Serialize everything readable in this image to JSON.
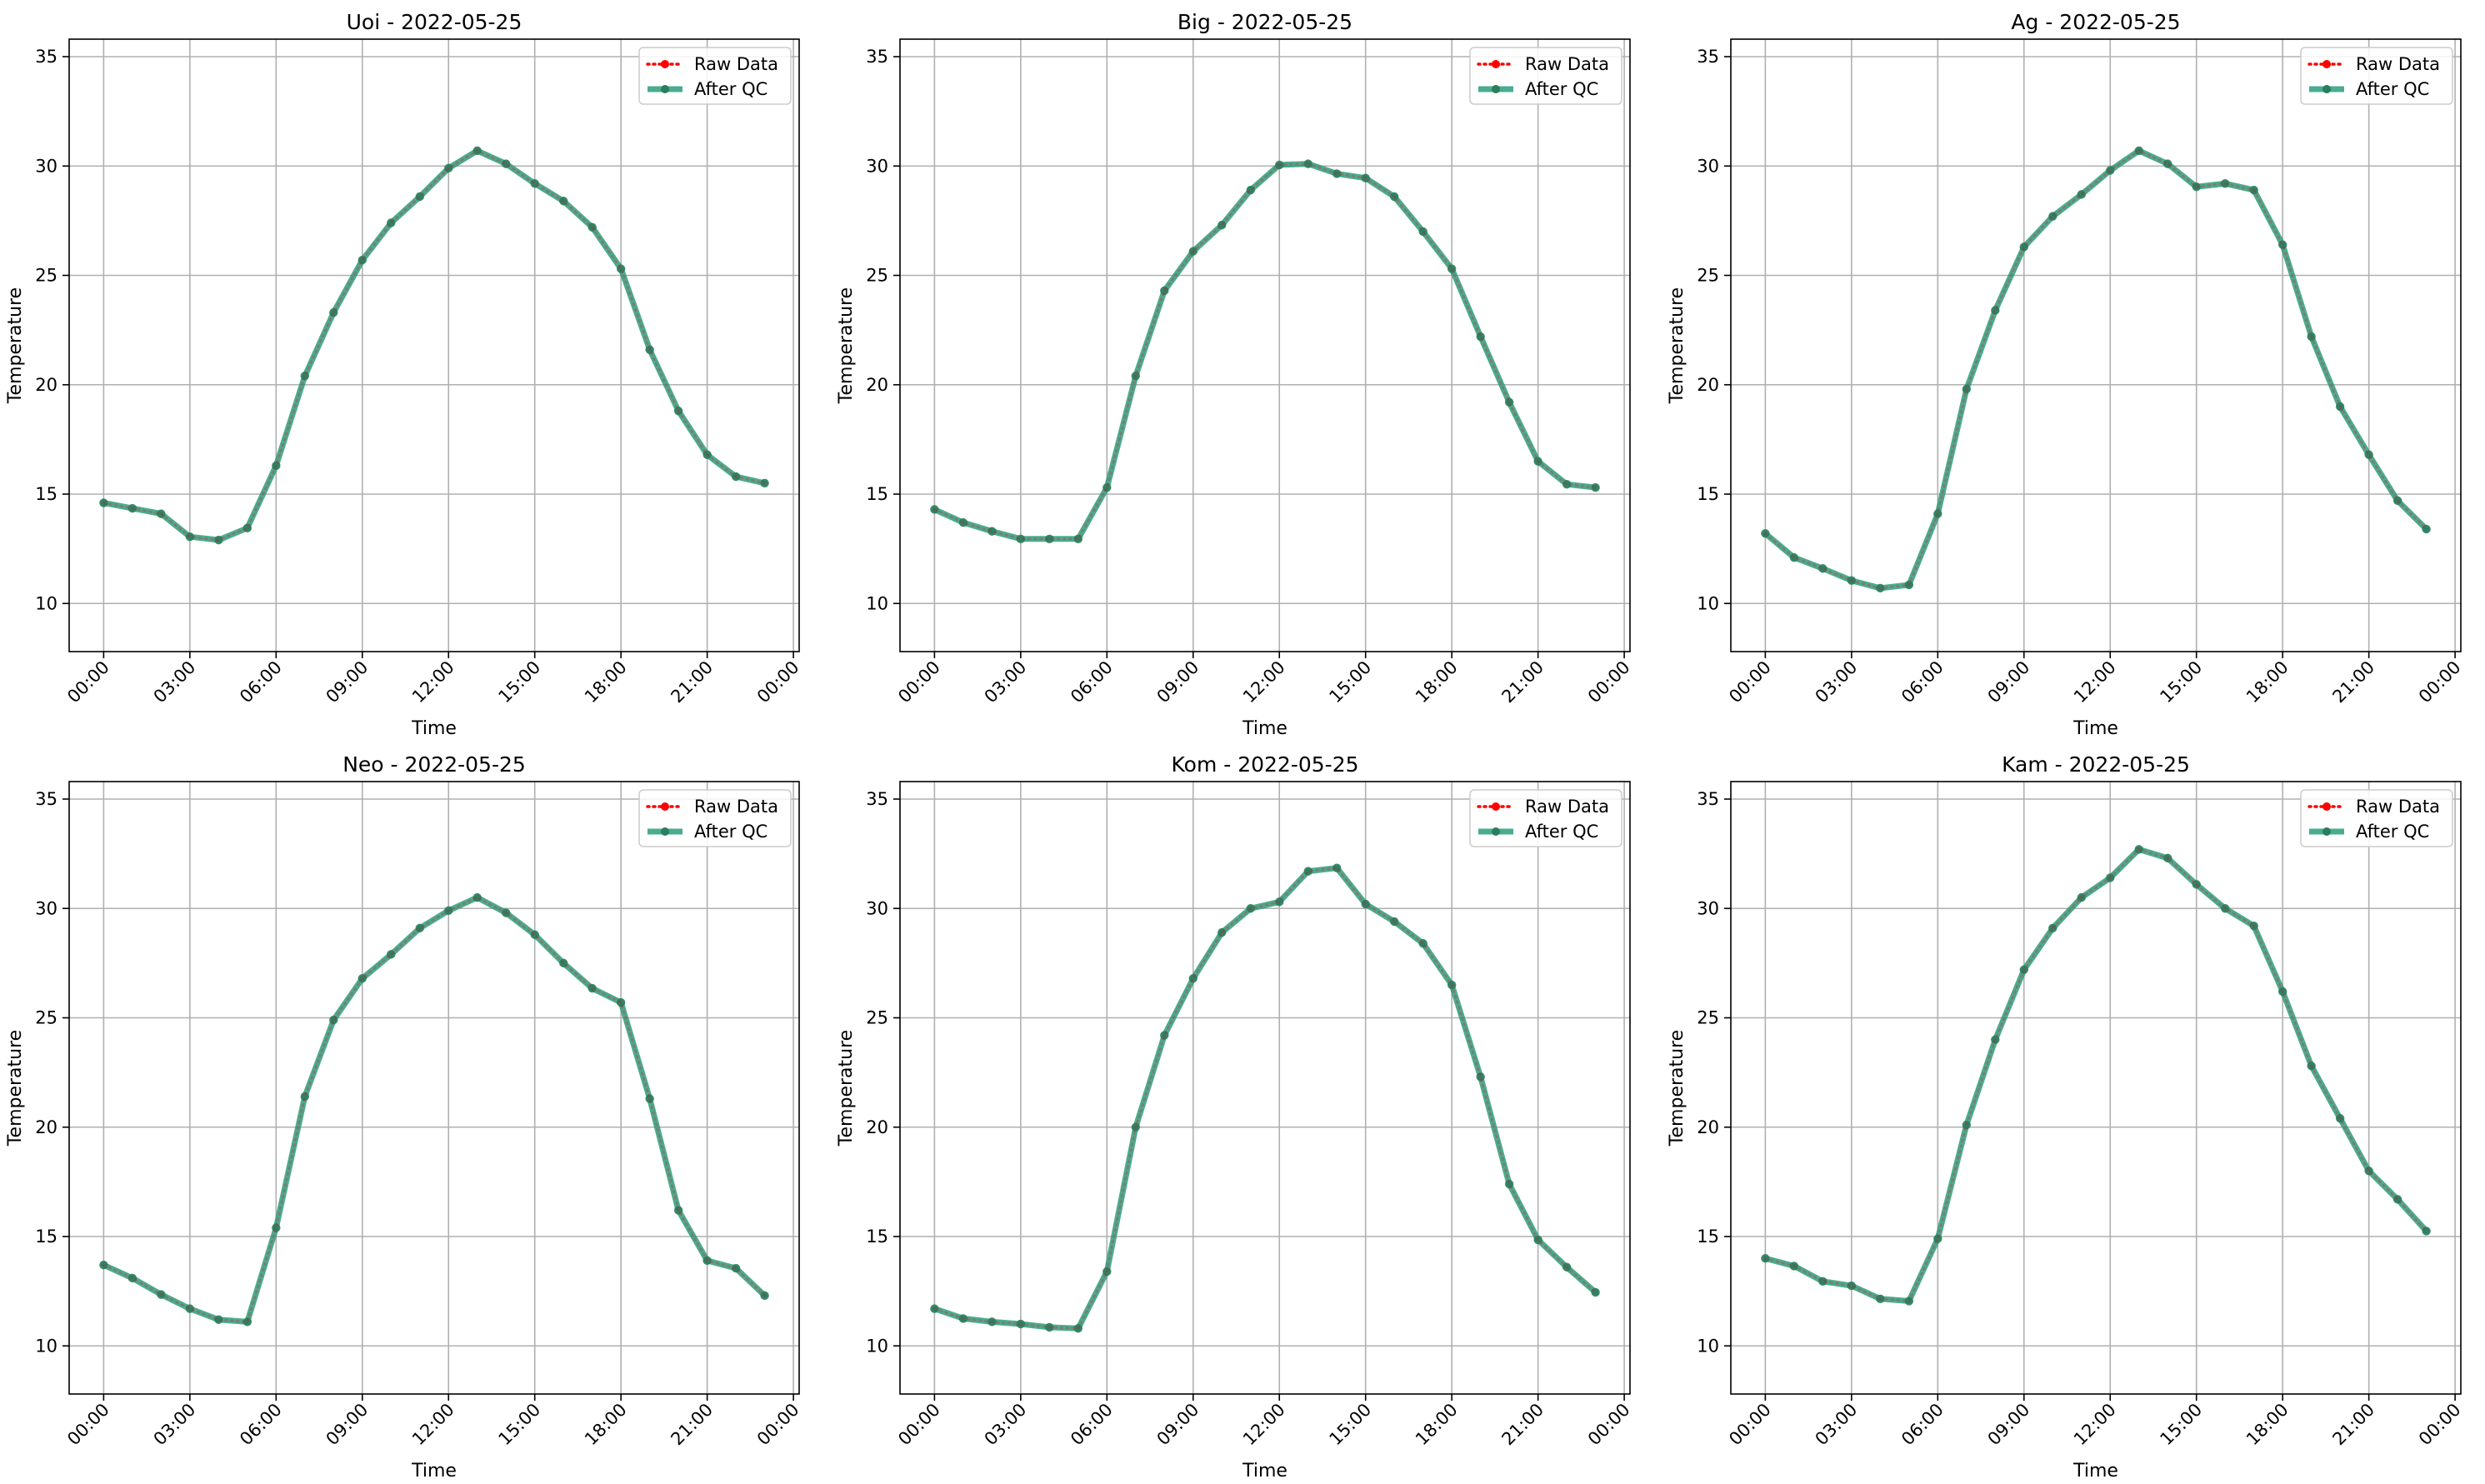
{
  "chart_data": [
    {
      "type": "line",
      "title": "Uoi - 2022-05-25",
      "xlabel": "Time",
      "ylabel": "Temperature",
      "xlim": [
        "2022-05-24 22:48",
        "2022-05-26 00:12"
      ],
      "ylim": [
        7.8,
        35.8
      ],
      "x_ticks": [
        "00:00",
        "03:00",
        "06:00",
        "09:00",
        "12:00",
        "15:00",
        "18:00",
        "21:00",
        "00:00"
      ],
      "y_ticks": [
        10,
        15,
        20,
        25,
        30,
        35
      ],
      "grid": true,
      "legend": "upper-right",
      "x": [
        "00:00",
        "01:00",
        "02:00",
        "03:00",
        "04:00",
        "05:00",
        "06:00",
        "07:00",
        "08:00",
        "09:00",
        "10:00",
        "11:00",
        "12:00",
        "13:00",
        "14:00",
        "15:00",
        "16:00",
        "17:00",
        "18:00",
        "19:00",
        "20:00",
        "21:00",
        "22:00",
        "23:00"
      ],
      "series": [
        {
          "name": "Raw Data",
          "color": "#ff0000",
          "style": "dotted",
          "values": [
            14.6,
            14.35,
            14.1,
            13.05,
            12.9,
            13.45,
            16.3,
            20.4,
            23.3,
            25.7,
            27.4,
            28.6,
            29.9,
            30.7,
            30.1,
            29.2,
            28.4,
            27.2,
            25.3,
            21.6,
            18.8,
            16.8,
            15.8,
            15.5
          ]
        },
        {
          "name": "After QC",
          "color": "#2a9d7c",
          "style": "solid",
          "values": [
            14.6,
            14.35,
            14.1,
            13.05,
            12.9,
            13.45,
            16.3,
            20.4,
            23.3,
            25.7,
            27.4,
            28.6,
            29.9,
            30.7,
            30.1,
            29.2,
            28.4,
            27.2,
            25.3,
            21.6,
            18.8,
            16.8,
            15.8,
            15.5
          ]
        }
      ]
    },
    {
      "type": "line",
      "title": "Big - 2022-05-25",
      "xlabel": "Time",
      "ylabel": "Temperature",
      "xlim": [
        "2022-05-24 22:48",
        "2022-05-26 00:12"
      ],
      "ylim": [
        7.8,
        35.8
      ],
      "x_ticks": [
        "00:00",
        "03:00",
        "06:00",
        "09:00",
        "12:00",
        "15:00",
        "18:00",
        "21:00",
        "00:00"
      ],
      "y_ticks": [
        10,
        15,
        20,
        25,
        30,
        35
      ],
      "grid": true,
      "legend": "upper-right",
      "x": [
        "00:00",
        "01:00",
        "02:00",
        "03:00",
        "04:00",
        "05:00",
        "06:00",
        "07:00",
        "08:00",
        "09:00",
        "10:00",
        "11:00",
        "12:00",
        "13:00",
        "14:00",
        "15:00",
        "16:00",
        "17:00",
        "18:00",
        "19:00",
        "20:00",
        "21:00",
        "22:00",
        "23:00"
      ],
      "series": [
        {
          "name": "Raw Data",
          "color": "#ff0000",
          "style": "dotted",
          "values": [
            14.3,
            13.7,
            13.3,
            12.95,
            12.95,
            12.95,
            15.3,
            20.4,
            24.3,
            26.1,
            27.3,
            28.9,
            30.05,
            30.1,
            29.65,
            29.45,
            28.6,
            27.0,
            25.3,
            22.2,
            19.2,
            16.5,
            15.45,
            15.3
          ]
        },
        {
          "name": "After QC",
          "color": "#2a9d7c",
          "style": "solid",
          "values": [
            14.3,
            13.7,
            13.3,
            12.95,
            12.95,
            12.95,
            15.3,
            20.4,
            24.3,
            26.1,
            27.3,
            28.9,
            30.05,
            30.1,
            29.65,
            29.45,
            28.6,
            27.0,
            25.3,
            22.2,
            19.2,
            16.5,
            15.45,
            15.3
          ]
        }
      ]
    },
    {
      "type": "line",
      "title": "Ag - 2022-05-25",
      "xlabel": "Time",
      "ylabel": "Temperature",
      "xlim": [
        "2022-05-24 22:48",
        "2022-05-26 00:12"
      ],
      "ylim": [
        7.8,
        35.8
      ],
      "x_ticks": [
        "00:00",
        "03:00",
        "06:00",
        "09:00",
        "12:00",
        "15:00",
        "18:00",
        "21:00",
        "00:00"
      ],
      "y_ticks": [
        10,
        15,
        20,
        25,
        30,
        35
      ],
      "grid": true,
      "legend": "upper-right",
      "x": [
        "00:00",
        "01:00",
        "02:00",
        "03:00",
        "04:00",
        "05:00",
        "06:00",
        "07:00",
        "08:00",
        "09:00",
        "10:00",
        "11:00",
        "12:00",
        "13:00",
        "14:00",
        "15:00",
        "16:00",
        "17:00",
        "18:00",
        "19:00",
        "20:00",
        "21:00",
        "22:00",
        "23:00"
      ],
      "series": [
        {
          "name": "Raw Data",
          "color": "#ff0000",
          "style": "dotted",
          "values": [
            13.2,
            12.1,
            11.6,
            11.05,
            10.7,
            10.85,
            14.1,
            19.8,
            23.4,
            26.3,
            27.7,
            28.7,
            29.8,
            30.7,
            30.1,
            29.05,
            29.2,
            28.9,
            26.4,
            22.2,
            19.0,
            16.8,
            14.7,
            13.4
          ]
        },
        {
          "name": "After QC",
          "color": "#2a9d7c",
          "style": "solid",
          "values": [
            13.2,
            12.1,
            11.6,
            11.05,
            10.7,
            10.85,
            14.1,
            19.8,
            23.4,
            26.3,
            27.7,
            28.7,
            29.8,
            30.7,
            30.1,
            29.05,
            29.2,
            28.9,
            26.4,
            22.2,
            19.0,
            16.8,
            14.7,
            13.4
          ]
        }
      ]
    },
    {
      "type": "line",
      "title": "Neo - 2022-05-25",
      "xlabel": "Time",
      "ylabel": "Temperature",
      "xlim": [
        "2022-05-24 22:48",
        "2022-05-26 00:12"
      ],
      "ylim": [
        7.8,
        35.8
      ],
      "x_ticks": [
        "00:00",
        "03:00",
        "06:00",
        "09:00",
        "12:00",
        "15:00",
        "18:00",
        "21:00",
        "00:00"
      ],
      "y_ticks": [
        10,
        15,
        20,
        25,
        30,
        35
      ],
      "grid": true,
      "legend": "upper-right",
      "x": [
        "00:00",
        "01:00",
        "02:00",
        "03:00",
        "04:00",
        "05:00",
        "06:00",
        "07:00",
        "08:00",
        "09:00",
        "10:00",
        "11:00",
        "12:00",
        "13:00",
        "14:00",
        "15:00",
        "16:00",
        "17:00",
        "18:00",
        "19:00",
        "20:00",
        "21:00",
        "22:00",
        "23:00"
      ],
      "series": [
        {
          "name": "Raw Data",
          "color": "#ff0000",
          "style": "dotted",
          "values": [
            13.7,
            13.1,
            12.35,
            11.7,
            11.2,
            11.1,
            15.4,
            21.4,
            24.9,
            26.8,
            27.9,
            29.1,
            29.9,
            30.5,
            29.8,
            28.8,
            27.5,
            26.35,
            25.7,
            21.3,
            16.2,
            13.9,
            13.55,
            12.3
          ]
        },
        {
          "name": "After QC",
          "color": "#2a9d7c",
          "style": "solid",
          "values": [
            13.7,
            13.1,
            12.35,
            11.7,
            11.2,
            11.1,
            15.4,
            21.4,
            24.9,
            26.8,
            27.9,
            29.1,
            29.9,
            30.5,
            29.8,
            28.8,
            27.5,
            26.35,
            25.7,
            21.3,
            16.2,
            13.9,
            13.55,
            12.3
          ]
        }
      ]
    },
    {
      "type": "line",
      "title": "Kom - 2022-05-25",
      "xlabel": "Time",
      "ylabel": "Temperature",
      "xlim": [
        "2022-05-24 22:48",
        "2022-05-26 00:12"
      ],
      "ylim": [
        7.8,
        35.8
      ],
      "x_ticks": [
        "00:00",
        "03:00",
        "06:00",
        "09:00",
        "12:00",
        "15:00",
        "18:00",
        "21:00",
        "00:00"
      ],
      "y_ticks": [
        10,
        15,
        20,
        25,
        30,
        35
      ],
      "grid": true,
      "legend": "upper-right",
      "x": [
        "00:00",
        "01:00",
        "02:00",
        "03:00",
        "04:00",
        "05:00",
        "06:00",
        "07:00",
        "08:00",
        "09:00",
        "10:00",
        "11:00",
        "12:00",
        "13:00",
        "14:00",
        "15:00",
        "16:00",
        "17:00",
        "18:00",
        "19:00",
        "20:00",
        "21:00",
        "22:00",
        "23:00"
      ],
      "series": [
        {
          "name": "Raw Data",
          "color": "#ff0000",
          "style": "dotted",
          "values": [
            11.7,
            11.25,
            11.1,
            11.0,
            10.85,
            10.8,
            13.4,
            20.0,
            24.2,
            26.8,
            28.9,
            30.0,
            30.3,
            31.7,
            31.85,
            30.2,
            29.4,
            28.4,
            26.5,
            22.3,
            17.4,
            14.85,
            13.6,
            12.45
          ]
        },
        {
          "name": "After QC",
          "color": "#2a9d7c",
          "style": "solid",
          "values": [
            11.7,
            11.25,
            11.1,
            11.0,
            10.85,
            10.8,
            13.4,
            20.0,
            24.2,
            26.8,
            28.9,
            30.0,
            30.3,
            31.7,
            31.85,
            30.2,
            29.4,
            28.4,
            26.5,
            22.3,
            17.4,
            14.85,
            13.6,
            12.45
          ]
        }
      ]
    },
    {
      "type": "line",
      "title": "Kam - 2022-05-25",
      "xlabel": "Time",
      "ylabel": "Temperature",
      "xlim": [
        "2022-05-24 22:48",
        "2022-05-26 00:12"
      ],
      "ylim": [
        7.8,
        35.8
      ],
      "x_ticks": [
        "00:00",
        "03:00",
        "06:00",
        "09:00",
        "12:00",
        "15:00",
        "18:00",
        "21:00",
        "00:00"
      ],
      "y_ticks": [
        10,
        15,
        20,
        25,
        30,
        35
      ],
      "grid": true,
      "legend": "upper-right",
      "x": [
        "00:00",
        "01:00",
        "02:00",
        "03:00",
        "04:00",
        "05:00",
        "06:00",
        "07:00",
        "08:00",
        "09:00",
        "10:00",
        "11:00",
        "12:00",
        "13:00",
        "14:00",
        "15:00",
        "16:00",
        "17:00",
        "18:00",
        "19:00",
        "20:00",
        "21:00",
        "22:00",
        "23:00"
      ],
      "series": [
        {
          "name": "Raw Data",
          "color": "#ff0000",
          "style": "dotted",
          "values": [
            14.0,
            13.65,
            12.95,
            12.75,
            12.15,
            12.05,
            14.9,
            20.1,
            24.0,
            27.2,
            29.1,
            30.5,
            31.4,
            32.7,
            32.3,
            31.1,
            30.0,
            29.2,
            26.2,
            22.8,
            20.4,
            18.0,
            16.7,
            15.25
          ]
        },
        {
          "name": "After QC",
          "color": "#2a9d7c",
          "style": "solid",
          "values": [
            14.0,
            13.65,
            12.95,
            12.75,
            12.15,
            12.05,
            14.9,
            20.1,
            24.0,
            27.2,
            29.1,
            30.5,
            31.4,
            32.7,
            32.3,
            31.1,
            30.0,
            29.2,
            26.2,
            22.8,
            20.4,
            18.0,
            16.7,
            15.25
          ]
        }
      ]
    }
  ]
}
